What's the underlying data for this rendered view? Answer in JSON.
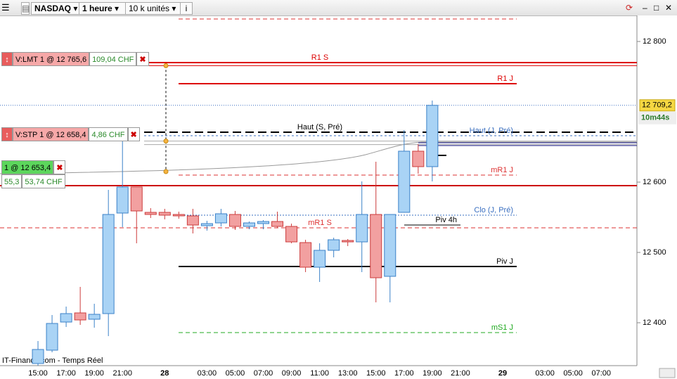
{
  "toolbar": {
    "symbol": "NASDAQ",
    "period": "1 heure",
    "size": "10 k unités"
  },
  "source": "IT-Finance.com - Temps Réel",
  "timer": "10m44s",
  "orders": [
    {
      "label": "V:LMT  1 @ 12 765,6",
      "pnl": "109,04 CHF",
      "price": 12765.6
    },
    {
      "label": "V:STP  1 @ 12 658,4",
      "pnl": "4,86 CHF",
      "price": 12658.4
    },
    {
      "label": "1 @ 12 653,4",
      "points": "55,3",
      "pnl": "53,74 CHF",
      "price": 12653.4
    }
  ],
  "chart_data": {
    "type": "candlestick",
    "categories": [
      null,
      "15:00",
      null,
      "17:00",
      null,
      "19:00",
      null,
      "21:00",
      null,
      null,
      "28",
      null,
      null,
      "03:00",
      null,
      "05:00",
      null,
      "07:00",
      null,
      "09:00",
      null,
      "11:00",
      null,
      "13:00",
      null,
      "15:00",
      null,
      "17:00",
      null,
      "19:00",
      null,
      "21:00",
      null,
      null,
      "29",
      null,
      null,
      "03:00",
      null,
      "05:00",
      null,
      "07:00",
      null
    ],
    "open": [
      null,
      12342,
      12361,
      12401,
      12414,
      12405,
      12413,
      12556,
      12593,
      12557,
      12557,
      12554,
      12552,
      12538,
      12542,
      12554,
      12537,
      12541,
      12544,
      12537,
      12514,
      12479,
      12503,
      12517,
      12515,
      12554,
      12466,
      12557,
      12644,
      12622,
      null,
      null,
      null,
      null,
      null,
      null,
      null,
      null,
      null,
      null,
      null,
      null,
      null
    ],
    "high": [
      null,
      12374,
      12411,
      12423,
      12451,
      12427,
      12589,
      12663,
      12593,
      12563,
      12562,
      12558,
      12562,
      12545,
      12562,
      12559,
      12544,
      12546,
      12558,
      12541,
      12518,
      12513,
      12521,
      12519,
      12601,
      12629,
      12554,
      12674,
      12654,
      12716,
      null,
      null,
      null,
      null,
      null,
      null,
      null,
      null,
      null,
      null,
      null,
      null,
      null
    ],
    "low": [
      null,
      12339,
      12358,
      12394,
      12397,
      12393,
      12381,
      12536,
      12513,
      12549,
      12547,
      12548,
      12527,
      12531,
      12537,
      12532,
      12533,
      12533,
      12535,
      12513,
      12472,
      12458,
      12493,
      12509,
      12472,
      12429,
      12429,
      12557,
      12612,
      12601,
      null,
      null,
      null,
      null,
      null,
      null,
      null,
      null,
      null,
      null,
      null,
      null,
      null
    ],
    "close": [
      null,
      12362,
      12399,
      12413,
      12404,
      12412,
      12554,
      12593,
      12559,
      12554,
      12553,
      12552,
      12539,
      12541,
      12555,
      12537,
      12542,
      12544,
      12537,
      12515,
      12479,
      12503,
      12518,
      12515,
      12554,
      12464,
      12554,
      12644,
      12622,
      12709.2,
      null,
      null,
      null,
      null,
      null,
      null,
      null,
      null,
      null,
      null,
      null,
      null,
      null
    ],
    "up_color": "#a9d3f5",
    "up_edge": "#3c82c8",
    "down_color": "#f2a0a0",
    "down_edge": "#cc3c3c",
    "ylim": [
      12339,
      12837
    ],
    "yticks": [
      {
        "value": 12400,
        "label": "12 400"
      },
      {
        "value": 12500,
        "label": "12 500"
      },
      {
        "value": 12600,
        "label": "12 600"
      },
      {
        "value": 12800,
        "label": "12 800"
      }
    ],
    "last_price": {
      "value": 12709.2,
      "label": "12 709,2"
    },
    "levels": [
      {
        "value": 12832,
        "color": "#d33",
        "dash": "6,4"
      },
      {
        "label": "R1 S",
        "value": 12770,
        "color": "#d00",
        "dash": "none"
      },
      {
        "label": "R1 J",
        "value": 12740,
        "color": "#d00",
        "dash": "none"
      },
      {
        "label": "Haut (S, Pré)",
        "value": 12671,
        "color": "#000",
        "dash": "12,6"
      },
      {
        "label": "Haut (J, Pré)",
        "value": 12666,
        "color": "#3a6fc0",
        "dash": "3,3"
      },
      {
        "label": "mR1 J",
        "value": 12610,
        "color": "#d33",
        "dash": "6,4"
      },
      {
        "value": 12595,
        "color": "#c00",
        "dash": "none"
      },
      {
        "label": "Clo (J, Pré)",
        "value": 12553,
        "color": "#3a6fc0",
        "dash": "2,2"
      },
      {
        "label": "mR1 S",
        "value": 12535,
        "color": "#d33",
        "dash": "6,4"
      },
      {
        "label": "Piv 4h",
        "value": 12539,
        "color": "#000",
        "dash": "none"
      },
      {
        "label": "Piv J",
        "value": 12480,
        "color": "#000",
        "dash": "none"
      },
      {
        "label": "mS1 J",
        "value": 12386,
        "color": "#2a2",
        "dash": "6,4"
      },
      {
        "value": 12656,
        "color": "#1a1a8a",
        "dash": "none"
      },
      {
        "value": 12652,
        "color": "#1a1a8a",
        "dash": "none"
      },
      {
        "value": 12638,
        "color": "#000",
        "dash": "none"
      }
    ]
  }
}
